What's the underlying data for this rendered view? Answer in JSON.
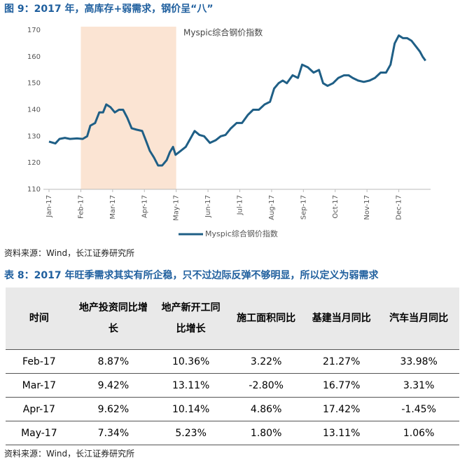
{
  "figure_title": "图 9：2017 年，高库存+弱需求，钢价呈“八”",
  "chart_data": {
    "type": "line",
    "annotation": "Myspic综合钢价指数",
    "x": [
      0,
      0.2,
      0.33,
      0.5,
      0.66,
      0.88,
      1.06,
      1.2,
      1.3,
      1.45,
      1.58,
      1.7,
      1.8,
      1.93,
      2.07,
      2.2,
      2.33,
      2.46,
      2.6,
      2.75,
      2.93,
      3.06,
      3.17,
      3.3,
      3.43,
      3.56,
      3.7,
      3.8,
      3.9,
      3.98,
      4.14,
      4.3,
      4.44,
      4.58,
      4.73,
      4.88,
      5.06,
      5.24,
      5.4,
      5.55,
      5.72,
      5.9,
      6.07,
      6.25,
      6.42,
      6.6,
      6.78,
      6.95,
      7.08,
      7.22,
      7.35,
      7.48,
      7.66,
      7.83,
      7.96,
      8.14,
      8.32,
      8.49,
      8.62,
      8.76,
      8.93,
      9.1,
      9.28,
      9.42,
      9.55,
      9.72,
      9.9,
      10.08,
      10.25,
      10.43,
      10.6,
      10.74,
      10.87,
      11,
      11.13,
      11.26,
      11.4,
      11.53,
      11.66,
      11.75,
      11.84
    ],
    "series": [
      {
        "name": "Myspic综合钢价指数",
        "color": "#1f5f86",
        "values": [
          128,
          127.3,
          129,
          129.4,
          129,
          129.2,
          129,
          130,
          134,
          135,
          139,
          139,
          142,
          141,
          139,
          140,
          140,
          137,
          133,
          132.5,
          132,
          128,
          124.5,
          122,
          119,
          119,
          121,
          124,
          126,
          123,
          124.5,
          126,
          129,
          132,
          130.5,
          130,
          127.5,
          128.5,
          130,
          130.5,
          133,
          135,
          135,
          138,
          140,
          140,
          142,
          143,
          148,
          150,
          151,
          150,
          153,
          152,
          157,
          156,
          154,
          155,
          150,
          149,
          150,
          152,
          153,
          153,
          152,
          151,
          150.5,
          151,
          152,
          154,
          154,
          157,
          165,
          168,
          167,
          167,
          166,
          164,
          162,
          160,
          158.5
        ]
      }
    ],
    "xlim": [
      0,
      12
    ],
    "xticks": [
      {
        "value": 0,
        "label": "Jan-17"
      },
      {
        "value": 1,
        "label": "Feb-17"
      },
      {
        "value": 2,
        "label": "Mar-17"
      },
      {
        "value": 3,
        "label": "Apr-17"
      },
      {
        "value": 4,
        "label": "May-17"
      },
      {
        "value": 5,
        "label": "Jun-17"
      },
      {
        "value": 6,
        "label": "Jul-17"
      },
      {
        "value": 7,
        "label": "Aug-17"
      },
      {
        "value": 8,
        "label": "Sep-17"
      },
      {
        "value": 9,
        "label": "Oct-17"
      },
      {
        "value": 10,
        "label": "Nov-17"
      },
      {
        "value": 11,
        "label": "Dec-17"
      }
    ],
    "ylim": [
      110,
      170
    ],
    "yticks": [
      110,
      120,
      130,
      140,
      150,
      160,
      170
    ],
    "shaded_range": [
      1,
      4
    ],
    "shade_color": "#fbe4d3",
    "legend": "bottom"
  },
  "figure_source": "资料来源：Wind，长江证券研究所",
  "table_title": "表 8：2017 年旺季需求其实有所企稳，只不过边际反弹不够明显，所以定义为弱需求",
  "table": {
    "header": [
      "时间",
      "地产投资同比增长",
      "地产新开工同比增长",
      "施工面积同比",
      "基建当月同比",
      "汽车当月同比"
    ],
    "rows": [
      [
        "Feb-17",
        "8.87%",
        "10.36%",
        "3.22%",
        "21.27%",
        "33.98%"
      ],
      [
        "Mar-17",
        "9.42%",
        "13.11%",
        "-2.80%",
        "16.77%",
        "3.31%"
      ],
      [
        "Apr-17",
        "9.62%",
        "10.14%",
        "4.86%",
        "17.42%",
        "-1.45%"
      ],
      [
        "May-17",
        "7.34%",
        "5.23%",
        "1.80%",
        "13.11%",
        "1.06%"
      ]
    ]
  },
  "table_source": "资料来源：Wind，长江证券研究所"
}
